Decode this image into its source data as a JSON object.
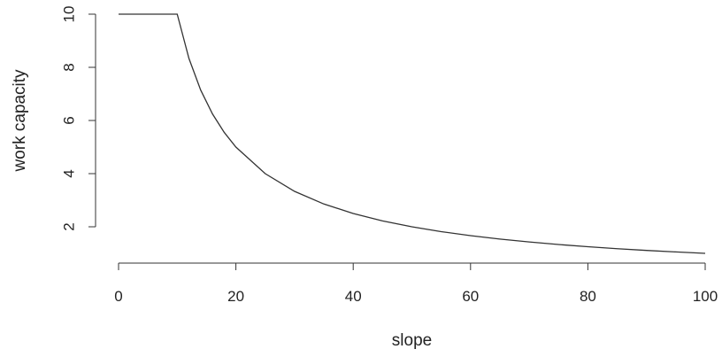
{
  "chart_data": {
    "type": "line",
    "title": "",
    "xlabel": "slope",
    "ylabel": "work capacity",
    "xlim": [
      0,
      100
    ],
    "ylim": [
      1,
      10
    ],
    "x_ticks": [
      0,
      20,
      40,
      60,
      80,
      100
    ],
    "y_ticks": [
      2,
      4,
      6,
      8,
      10
    ],
    "x_tick_labels": [
      "0",
      "20",
      "40",
      "60",
      "80",
      "100"
    ],
    "y_tick_labels": [
      "2",
      "4",
      "6",
      "8",
      "10"
    ],
    "grid": false,
    "line_color": "#333333",
    "series": [
      {
        "x": [
          0,
          5,
          10,
          12,
          14,
          16,
          18,
          20,
          25,
          30,
          35,
          40,
          45,
          50,
          55,
          60,
          65,
          70,
          75,
          80,
          85,
          90,
          95,
          100
        ],
        "y": [
          10,
          10,
          10,
          8.333,
          7.143,
          6.25,
          5.556,
          5,
          4,
          3.333,
          2.857,
          2.5,
          2.222,
          2,
          1.818,
          1.667,
          1.538,
          1.429,
          1.333,
          1.25,
          1.176,
          1.111,
          1.053,
          1
        ]
      }
    ]
  }
}
